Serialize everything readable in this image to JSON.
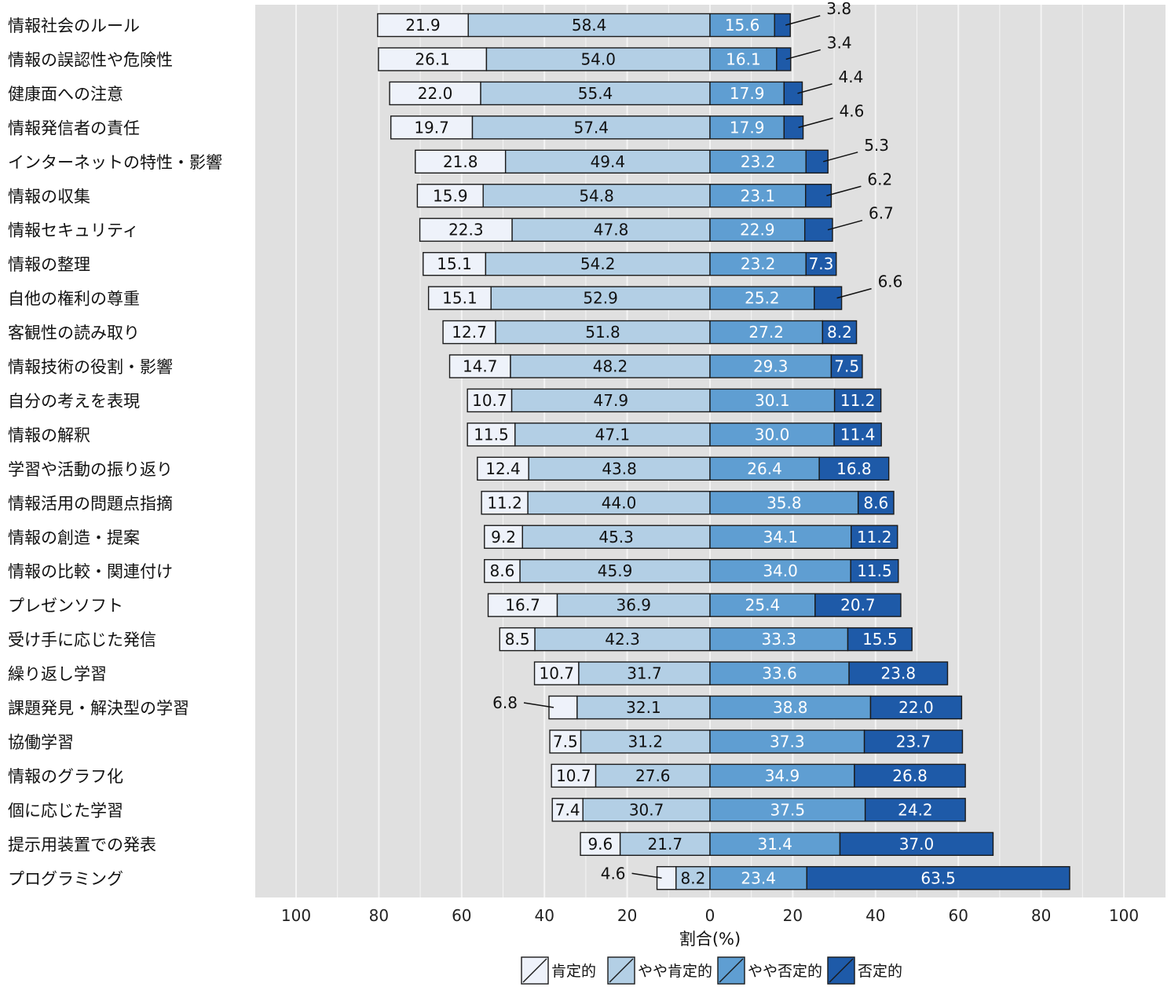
{
  "chart_data": {
    "type": "bar",
    "orientation": "horizontal",
    "stacked": "diverging",
    "categories": [
      "情報社会のルール",
      "情報の誤認性や危険性",
      "健康面への注意",
      "情報発信者の責任",
      "インターネットの特性・影響",
      "情報の収集",
      "情報セキュリティ",
      "情報の整理",
      "自他の権利の尊重",
      "客観性の読み取り",
      "情報技術の役割・影響",
      "自分の考えを表現",
      "情報の解釈",
      "学習や活動の振り返り",
      "情報活用の問題点指摘",
      "情報の創造・提案",
      "情報の比較・関連付け",
      "プレゼンソフト",
      "受け手に応じた発信",
      "繰り返し学習",
      "課題発見・解決型の学習",
      "協働学習",
      "情報のグラフ化",
      "個に応じた学習",
      "提示用装置での発表",
      "プログラミング"
    ],
    "series": [
      {
        "name": "肯定的",
        "color": "#eef2fa",
        "text_color": "#111111",
        "side": "left",
        "values": [
          21.9,
          26.1,
          22.0,
          19.7,
          21.8,
          15.9,
          22.3,
          15.1,
          15.1,
          12.7,
          14.7,
          10.7,
          11.5,
          12.4,
          11.2,
          9.2,
          8.6,
          16.7,
          8.5,
          10.7,
          6.8,
          7.5,
          10.7,
          7.4,
          9.6,
          4.6
        ]
      },
      {
        "name": "やや肯定的",
        "color": "#b3cfe5",
        "text_color": "#111111",
        "side": "left",
        "values": [
          58.4,
          54.0,
          55.4,
          57.4,
          49.4,
          54.8,
          47.8,
          54.2,
          52.9,
          51.8,
          48.2,
          47.9,
          47.1,
          43.8,
          44.0,
          45.3,
          45.9,
          36.9,
          42.3,
          31.7,
          32.1,
          31.2,
          27.6,
          30.7,
          21.7,
          8.2
        ]
      },
      {
        "name": "やや否定的",
        "color": "#5f9ed2",
        "text_color": "#ffffff",
        "side": "right",
        "values": [
          15.6,
          16.1,
          17.9,
          17.9,
          23.2,
          23.1,
          22.9,
          23.2,
          25.2,
          27.2,
          29.3,
          30.1,
          30.0,
          26.4,
          35.8,
          34.1,
          34.0,
          25.4,
          33.3,
          33.6,
          38.8,
          37.3,
          34.9,
          37.5,
          31.4,
          23.4
        ]
      },
      {
        "name": "否定的",
        "color": "#1e5aa8",
        "text_color": "#ffffff",
        "side": "right",
        "values": [
          3.8,
          3.4,
          4.4,
          4.6,
          5.3,
          6.2,
          6.7,
          7.3,
          6.6,
          8.2,
          7.5,
          11.2,
          11.4,
          16.8,
          8.6,
          11.2,
          11.5,
          20.7,
          15.5,
          23.8,
          22.0,
          23.7,
          26.8,
          24.2,
          37.0,
          63.5
        ]
      }
    ],
    "x_ticks": [
      "100",
      "80",
      "60",
      "40",
      "20",
      "0",
      "20",
      "40",
      "60",
      "80",
      "100"
    ],
    "xlim": [
      -100,
      100
    ],
    "xlabel": "割合(%)",
    "grid": true,
    "legend_position": "bottom-center",
    "label_style": "values shown inside segments; small segments labelled outside with leader lines"
  }
}
